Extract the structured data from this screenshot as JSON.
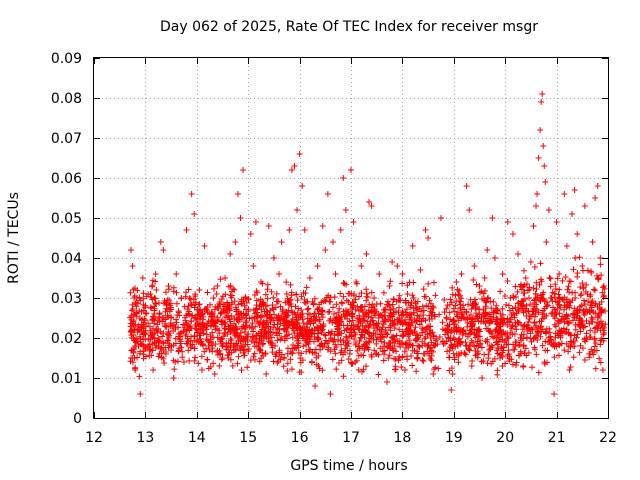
{
  "chart_data": {
    "type": "scatter",
    "title": "Day 062 of 2025, Rate Of TEC Index for receiver msgr",
    "xlabel": "GPS time / hours",
    "ylabel": "ROTI / TECUs",
    "xlim": [
      12,
      22
    ],
    "ylim": [
      0,
      0.09
    ],
    "xticks": [
      "12",
      "13",
      "14",
      "15",
      "16",
      "17",
      "18",
      "19",
      "20",
      "21",
      "22"
    ],
    "yticks": [
      "0",
      "0.01",
      "0.02",
      "0.03",
      "0.04",
      "0.05",
      "0.06",
      "0.07",
      "0.08",
      "0.09"
    ],
    "grid": true,
    "marker": "plus",
    "series": [
      {
        "name": "ROTI",
        "color": "#ff0000",
        "points": [
          [
            12.72,
            0.042
          ],
          [
            12.75,
            0.038
          ],
          [
            12.78,
            0.03
          ],
          [
            12.72,
            0.015
          ],
          [
            12.8,
            0.012
          ],
          [
            12.85,
            0.022
          ],
          [
            12.9,
            0.006
          ],
          [
            12.95,
            0.035
          ],
          [
            13.0,
            0.028
          ],
          [
            13.05,
            0.018
          ],
          [
            13.1,
            0.031
          ],
          [
            13.15,
            0.012
          ],
          [
            13.2,
            0.036
          ],
          [
            13.25,
            0.02
          ],
          [
            13.3,
            0.044
          ],
          [
            13.35,
            0.042
          ],
          [
            13.4,
            0.016
          ],
          [
            13.45,
            0.033
          ],
          [
            13.5,
            0.025
          ],
          [
            13.55,
            0.01
          ],
          [
            13.6,
            0.036
          ],
          [
            13.65,
            0.021
          ],
          [
            13.7,
            0.03
          ],
          [
            13.75,
            0.014
          ],
          [
            13.8,
            0.047
          ],
          [
            13.85,
            0.026
          ],
          [
            13.9,
            0.056
          ],
          [
            13.95,
            0.051
          ],
          [
            14.0,
            0.019
          ],
          [
            14.05,
            0.032
          ],
          [
            14.1,
            0.012
          ],
          [
            14.15,
            0.043
          ],
          [
            14.2,
            0.027
          ],
          [
            14.25,
            0.017
          ],
          [
            14.3,
            0.024
          ],
          [
            14.35,
            0.011
          ],
          [
            14.4,
            0.033
          ],
          [
            14.45,
            0.029
          ],
          [
            14.5,
            0.015
          ],
          [
            14.55,
            0.035
          ],
          [
            14.6,
            0.021
          ],
          [
            14.65,
            0.041
          ],
          [
            14.7,
            0.013
          ],
          [
            14.75,
            0.044
          ],
          [
            14.8,
            0.056
          ],
          [
            14.85,
            0.05
          ],
          [
            14.9,
            0.062
          ],
          [
            14.95,
            0.03
          ],
          [
            15.0,
            0.021
          ],
          [
            15.05,
            0.046
          ],
          [
            15.1,
            0.038
          ],
          [
            15.15,
            0.049
          ],
          [
            15.2,
            0.018
          ],
          [
            15.25,
            0.034
          ],
          [
            15.3,
            0.028
          ],
          [
            15.35,
            0.011
          ],
          [
            15.4,
            0.048
          ],
          [
            15.45,
            0.025
          ],
          [
            15.5,
            0.04
          ],
          [
            15.55,
            0.016
          ],
          [
            15.6,
            0.036
          ],
          [
            15.65,
            0.044
          ],
          [
            15.7,
            0.022
          ],
          [
            15.75,
            0.031
          ],
          [
            15.8,
            0.047
          ],
          [
            15.85,
            0.062
          ],
          [
            15.9,
            0.063
          ],
          [
            15.95,
            0.052
          ],
          [
            16.0,
            0.066
          ],
          [
            16.05,
            0.058
          ],
          [
            16.1,
            0.047
          ],
          [
            16.15,
            0.022
          ],
          [
            16.2,
            0.035
          ],
          [
            16.25,
            0.029
          ],
          [
            16.3,
            0.008
          ],
          [
            16.35,
            0.038
          ],
          [
            16.4,
            0.018
          ],
          [
            16.45,
            0.048
          ],
          [
            16.5,
            0.042
          ],
          [
            16.55,
            0.056
          ],
          [
            16.6,
            0.006
          ],
          [
            16.65,
            0.044
          ],
          [
            16.7,
            0.036
          ],
          [
            16.75,
            0.021
          ],
          [
            16.8,
            0.047
          ],
          [
            16.85,
            0.06
          ],
          [
            16.9,
            0.052
          ],
          [
            16.95,
            0.029
          ],
          [
            17.0,
            0.062
          ],
          [
            17.05,
            0.049
          ],
          [
            17.1,
            0.034
          ],
          [
            17.15,
            0.012
          ],
          [
            17.2,
            0.038
          ],
          [
            17.25,
            0.025
          ],
          [
            17.3,
            0.041
          ],
          [
            17.35,
            0.054
          ],
          [
            17.4,
            0.053
          ],
          [
            17.45,
            0.03
          ],
          [
            17.5,
            0.016
          ],
          [
            17.55,
            0.036
          ],
          [
            17.6,
            0.022
          ],
          [
            17.65,
            0.027
          ],
          [
            17.7,
            0.009
          ],
          [
            17.75,
            0.033
          ],
          [
            17.8,
            0.039
          ],
          [
            17.85,
            0.018
          ],
          [
            17.9,
            0.038
          ],
          [
            17.95,
            0.024
          ],
          [
            18.0,
            0.036
          ],
          [
            18.05,
            0.012
          ],
          [
            18.1,
            0.031
          ],
          [
            18.15,
            0.026
          ],
          [
            18.2,
            0.043
          ],
          [
            18.25,
            0.029
          ],
          [
            18.3,
            0.015
          ],
          [
            18.35,
            0.037
          ],
          [
            18.4,
            0.022
          ],
          [
            18.45,
            0.047
          ],
          [
            18.5,
            0.045
          ],
          [
            18.55,
            0.02
          ],
          [
            18.6,
            0.011
          ],
          [
            18.75,
            0.05
          ],
          [
            18.95,
            0.007
          ],
          [
            19.0,
            0.02
          ],
          [
            19.05,
            0.034
          ],
          [
            19.1,
            0.016
          ],
          [
            19.15,
            0.036
          ],
          [
            19.2,
            0.025
          ],
          [
            19.25,
            0.058
          ],
          [
            19.3,
            0.052
          ],
          [
            19.35,
            0.013
          ],
          [
            19.4,
            0.038
          ],
          [
            19.45,
            0.022
          ],
          [
            19.5,
            0.033
          ],
          [
            19.55,
            0.01
          ],
          [
            19.6,
            0.035
          ],
          [
            19.65,
            0.042
          ],
          [
            19.7,
            0.018
          ],
          [
            19.75,
            0.05
          ],
          [
            19.8,
            0.04
          ],
          [
            19.85,
            0.027
          ],
          [
            19.9,
            0.015
          ],
          [
            19.95,
            0.036
          ],
          [
            20.0,
            0.021
          ],
          [
            20.05,
            0.049
          ],
          [
            20.1,
            0.03
          ],
          [
            20.15,
            0.046
          ],
          [
            20.2,
            0.019
          ],
          [
            20.25,
            0.041
          ],
          [
            20.3,
            0.033
          ],
          [
            20.35,
            0.013
          ],
          [
            20.4,
            0.035
          ],
          [
            20.45,
            0.024
          ],
          [
            20.5,
            0.039
          ],
          [
            20.55,
            0.048
          ],
          [
            20.6,
            0.053
          ],
          [
            20.62,
            0.056
          ],
          [
            20.65,
            0.065
          ],
          [
            20.68,
            0.072
          ],
          [
            20.7,
            0.079
          ],
          [
            20.72,
            0.081
          ],
          [
            20.74,
            0.068
          ],
          [
            20.76,
            0.063
          ],
          [
            20.78,
            0.059
          ],
          [
            20.8,
            0.044
          ],
          [
            20.85,
            0.052
          ],
          [
            20.9,
            0.03
          ],
          [
            20.95,
            0.006
          ],
          [
            21.0,
            0.049
          ],
          [
            21.05,
            0.036
          ],
          [
            21.1,
            0.022
          ],
          [
            21.15,
            0.056
          ],
          [
            21.2,
            0.043
          ],
          [
            21.25,
            0.012
          ],
          [
            21.3,
            0.051
          ],
          [
            21.35,
            0.057
          ],
          [
            21.4,
            0.046
          ],
          [
            21.45,
            0.027
          ],
          [
            21.5,
            0.038
          ],
          [
            21.55,
            0.053
          ],
          [
            21.6,
            0.031
          ],
          [
            21.65,
            0.016
          ],
          [
            21.7,
            0.044
          ],
          [
            21.75,
            0.055
          ],
          [
            21.8,
            0.058
          ],
          [
            21.85,
            0.04
          ],
          [
            21.9,
            0.012
          ],
          [
            21.92,
            0.033
          ]
        ]
      }
    ],
    "density_fill": {
      "note": "dense background of ROTI samples between 0.01 and 0.035 from 12.7 to 21.95 hours",
      "x_range": [
        12.7,
        21.95
      ],
      "y_range": [
        0.009,
        0.035
      ],
      "count": 2600,
      "seed": 62
    }
  }
}
